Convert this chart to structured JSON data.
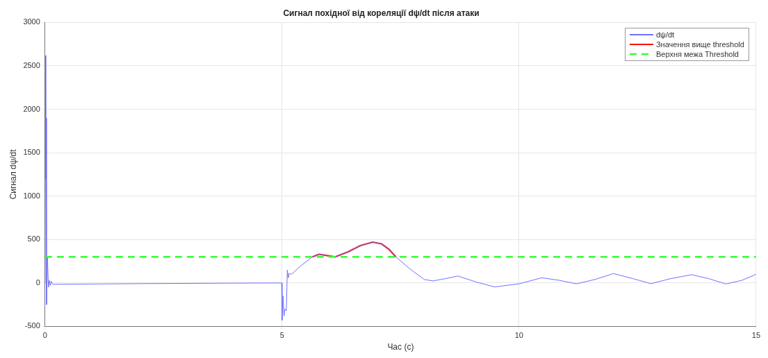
{
  "chart_data": {
    "type": "line",
    "title": "Сигнал похідної від кореляції dψ/dt після атаки",
    "xlabel": "Час (с)",
    "ylabel": "Сигнал dψ/dt",
    "xlim": [
      0,
      15
    ],
    "xticks": [
      0,
      5,
      10,
      15
    ],
    "ylim": [
      -500,
      3000
    ],
    "yticks": [
      -500,
      0,
      500,
      1000,
      1500,
      2000,
      2500,
      3000
    ],
    "grid": true,
    "legend": "top right",
    "marker": "none",
    "series": [
      {
        "name": "dψ/dt",
        "color": "#7070ff",
        "line_style": "solid",
        "x": [
          0,
          0.01,
          0.015,
          0.02,
          0.03,
          0.05,
          0.07,
          0.09,
          0.11,
          0.13,
          0.16,
          1,
          2,
          3,
          4,
          4.99,
          5.0,
          5.02,
          5.04,
          5.06,
          5.09,
          5.11,
          5.13,
          5.15,
          5.2,
          5.4,
          5.64,
          5.78,
          5.95,
          6.12,
          6.4,
          6.65,
          6.91,
          7.1,
          7.25,
          7.4,
          7.7,
          8.0,
          8.18,
          8.45,
          8.71,
          9.1,
          9.48,
          10,
          10.48,
          10.85,
          11.21,
          11.6,
          11.99,
          12.4,
          12.78,
          13.2,
          13.64,
          14.0,
          14.36,
          14.7,
          15
        ],
        "values": [
          0,
          2620,
          1200,
          1900,
          -250,
          300,
          -50,
          30,
          -30,
          20,
          -15,
          -12,
          -8,
          -5,
          -2,
          0,
          -430,
          -150,
          -380,
          -300,
          -320,
          150,
          60,
          110,
          100,
          200,
          300,
          330,
          315,
          300,
          360,
          430,
          470,
          450,
          390,
          300,
          160,
          40,
          23,
          50,
          80,
          10,
          -46,
          -10,
          60,
          30,
          -10,
          40,
          108,
          50,
          -8,
          50,
          95,
          50,
          -12,
          30,
          100
        ]
      },
      {
        "name": "Значення вище threshold",
        "color": "#ff0000",
        "line_style": "solid",
        "x": [
          5.64,
          5.78,
          5.95,
          6.12,
          6.4,
          6.65,
          6.91,
          7.1,
          7.25,
          7.4
        ],
        "values": [
          300,
          330,
          315,
          300,
          360,
          430,
          470,
          450,
          390,
          300
        ]
      }
    ],
    "ref_lines": [
      {
        "axis": "y",
        "value": 300,
        "label": "Верхня межа Threshold",
        "color": "#33ff33",
        "line_style": "dashed"
      }
    ]
  }
}
